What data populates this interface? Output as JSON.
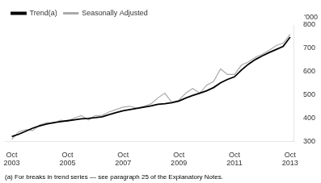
{
  "chart_data": {
    "type": "line",
    "ylabel": "'000",
    "annotations": [
      "(a) For breaks in trend series — see paragraph 25 of the Explanatory Notes."
    ],
    "x": [
      2003.75,
      2004.0,
      2004.25,
      2004.5,
      2004.75,
      2005.0,
      2005.25,
      2005.5,
      2005.75,
      2006.0,
      2006.25,
      2006.5,
      2006.75,
      2007.0,
      2007.25,
      2007.5,
      2007.75,
      2008.0,
      2008.25,
      2008.5,
      2008.75,
      2009.0,
      2009.25,
      2009.5,
      2009.75,
      2010.0,
      2010.25,
      2010.5,
      2010.75,
      2011.0,
      2011.25,
      2011.5,
      2011.75,
      2012.0,
      2012.25,
      2012.5,
      2012.75,
      2013.0,
      2013.25,
      2013.5,
      2013.75
    ],
    "series": [
      {
        "name": "Trend(a)",
        "color": "#000000",
        "values": [
          322,
          332,
          345,
          358,
          368,
          376,
          382,
          386,
          390,
          394,
          398,
          400,
          403,
          407,
          416,
          425,
          433,
          438,
          443,
          448,
          453,
          460,
          463,
          467,
          474,
          487,
          498,
          508,
          518,
          532,
          552,
          567,
          578,
          607,
          632,
          652,
          668,
          682,
          695,
          708,
          748
        ]
      },
      {
        "name": "Seasonally Adjusted",
        "color": "#aaaaaa",
        "values": [
          310,
          342,
          352,
          348,
          372,
          382,
          378,
          392,
          388,
          402,
          412,
          393,
          412,
          413,
          428,
          438,
          448,
          452,
          443,
          452,
          462,
          488,
          508,
          468,
          478,
          508,
          528,
          508,
          542,
          558,
          612,
          588,
          588,
          628,
          642,
          662,
          675,
          692,
          712,
          722,
          760
        ]
      }
    ],
    "xlim": [
      2003.5,
      2013.9
    ],
    "xticks": [
      {
        "value": 2003.75,
        "label": "Oct\n2003"
      },
      {
        "value": 2005.75,
        "label": "Oct\n2005"
      },
      {
        "value": 2007.75,
        "label": "Oct\n2007"
      },
      {
        "value": 2009.75,
        "label": "Oct\n2009"
      },
      {
        "value": 2011.75,
        "label": "Oct\n2011"
      },
      {
        "value": 2013.75,
        "label": "Oct\n2013"
      }
    ],
    "ylim": [
      300,
      800
    ],
    "yticks": [
      300,
      400,
      500,
      600,
      700,
      800
    ],
    "grid": false,
    "legend": "upper left"
  }
}
